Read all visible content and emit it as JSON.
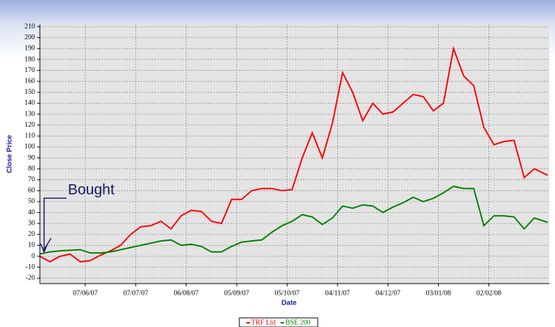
{
  "chart_data": {
    "type": "line",
    "annotation": "Bought",
    "xlabel": "Date",
    "ylabel": "Close Price",
    "x": [
      "2007-05-11",
      "2007-05-17",
      "2007-05-23",
      "2007-05-29",
      "2007-06-04",
      "2007-06-10",
      "2007-06-16",
      "2007-06-22",
      "2007-06-28",
      "2007-07-04",
      "2007-07-10",
      "2007-07-16",
      "2007-07-22",
      "2007-07-28",
      "2007-08-03",
      "2007-08-09",
      "2007-08-15",
      "2007-08-21",
      "2007-08-27",
      "2007-09-02",
      "2007-09-08",
      "2007-09-14",
      "2007-09-20",
      "2007-09-26",
      "2007-10-02",
      "2007-10-08",
      "2007-10-14",
      "2007-10-20",
      "2007-10-26",
      "2007-11-01",
      "2007-11-07",
      "2007-11-13",
      "2007-11-19",
      "2007-11-25",
      "2007-12-01",
      "2007-12-07",
      "2007-12-13",
      "2007-12-19",
      "2007-12-25",
      "2007-12-31",
      "2008-01-06",
      "2008-01-12",
      "2008-01-18",
      "2008-01-24",
      "2008-01-30",
      "2008-02-05",
      "2008-02-11",
      "2008-02-17",
      "2008-02-23",
      "2008-02-29",
      "2008-03-08"
    ],
    "series": [
      {
        "name": "TRF Ltd",
        "color": "#ff0000",
        "values": [
          0,
          -5,
          0,
          2,
          -5,
          -4,
          1,
          5,
          10,
          20,
          27,
          28,
          32,
          25,
          37,
          42,
          41,
          32,
          30,
          52,
          52,
          60,
          62,
          62,
          60,
          61,
          90,
          113,
          90,
          122,
          168,
          150,
          124,
          140,
          130,
          132,
          140,
          148,
          146,
          133,
          140,
          190,
          165,
          156,
          118,
          102,
          105,
          106,
          72,
          80,
          74
        ]
      },
      {
        "name": "BSE 200",
        "color": "#008000",
        "values": [
          2,
          4,
          5,
          5.5,
          6,
          3,
          3,
          4,
          6,
          8,
          10,
          12,
          14,
          15,
          10,
          11,
          9,
          4,
          4,
          9,
          13,
          14,
          15,
          22,
          28,
          32,
          38,
          36,
          29,
          35,
          46,
          44,
          47,
          46,
          40,
          45,
          49,
          54,
          50,
          53,
          58,
          64,
          62,
          62,
          28,
          37,
          37,
          36,
          25,
          35,
          31
        ]
      }
    ],
    "xlim": [
      "2007-05-11",
      "2008-03-09"
    ],
    "xticks": [
      {
        "value": "2007-06-07",
        "label": "07/06/07"
      },
      {
        "value": "2007-07-07",
        "label": "07/07/07"
      },
      {
        "value": "2007-08-06",
        "label": "06/08/07"
      },
      {
        "value": "2007-09-05",
        "label": "05/09/07"
      },
      {
        "value": "2007-10-05",
        "label": "05/10/07"
      },
      {
        "value": "2007-11-04",
        "label": "04/11/07"
      },
      {
        "value": "2007-12-04",
        "label": "04/12/07"
      },
      {
        "value": "2008-01-03",
        "label": "03/01/08"
      },
      {
        "value": "2008-02-02",
        "label": "02/02/08"
      }
    ],
    "ylim": [
      -25,
      212
    ],
    "yticks": [
      -20,
      -10,
      0,
      10,
      20,
      30,
      40,
      50,
      60,
      70,
      80,
      90,
      100,
      110,
      120,
      130,
      140,
      150,
      160,
      170,
      180,
      190,
      200,
      210
    ],
    "grid": true
  }
}
